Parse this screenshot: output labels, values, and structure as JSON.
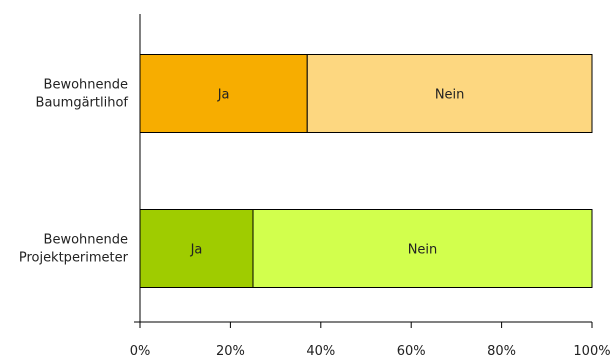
{
  "chart_data": {
    "type": "bar",
    "orientation": "horizontal",
    "stacked": true,
    "percent": true,
    "categories": [
      [
        "Bewohnende",
        "Baumgärtlihof"
      ],
      [
        "Bewohnende",
        "Projektperimeter"
      ]
    ],
    "series": [
      {
        "name": "Ja",
        "values": [
          37,
          25
        ],
        "colors": [
          "#f7ad00",
          "#9fcc00"
        ]
      },
      {
        "name": "Nein",
        "values": [
          63,
          75
        ],
        "colors": [
          "#fdd780",
          "#d2ff4d"
        ]
      }
    ],
    "xlim": [
      0,
      100
    ],
    "xticks": [
      "0%",
      "20%",
      "40%",
      "60%",
      "80%",
      "100%"
    ],
    "grid": false,
    "legend": "none"
  }
}
